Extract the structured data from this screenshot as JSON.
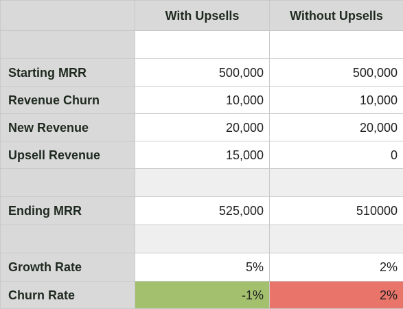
{
  "columns": [
    "",
    "With Upsells",
    "Without Upsells"
  ],
  "rows": [
    {
      "label": "",
      "with": "",
      "without": ""
    },
    {
      "label": "Starting MRR",
      "with": "500,000",
      "without": "500,000"
    },
    {
      "label": "Revenue Churn",
      "with": "10,000",
      "without": "10,000"
    },
    {
      "label": "New Revenue",
      "with": "20,000",
      "without": "20,000"
    },
    {
      "label": "Upsell Revenue",
      "with": "15,000",
      "without": "0"
    },
    {
      "label": "",
      "with": "",
      "without": ""
    },
    {
      "label": "Ending MRR",
      "with": "525,000",
      "without": "510000"
    },
    {
      "label": "",
      "with": "",
      "without": ""
    },
    {
      "label": "Growth Rate",
      "with": "5%",
      "without": "2%"
    },
    {
      "label": "Churn Rate",
      "with": "-1%",
      "without": "2%"
    }
  ],
  "colors": {
    "positive": "#a2c06e",
    "negative": "#e9746a"
  }
}
